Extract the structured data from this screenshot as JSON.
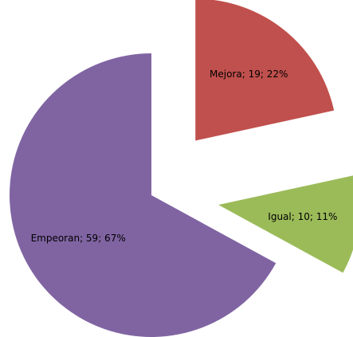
{
  "chart_data": {
    "type": "pie",
    "values": [
      19,
      10,
      59
    ],
    "value_labels": [
      "Mejora; 19; 22%",
      "Igual; 10; 11%",
      "Empeoran; 59; 67%"
    ],
    "colors": [
      "#c0504d",
      "#9bbb59",
      "#8064a2"
    ]
  }
}
